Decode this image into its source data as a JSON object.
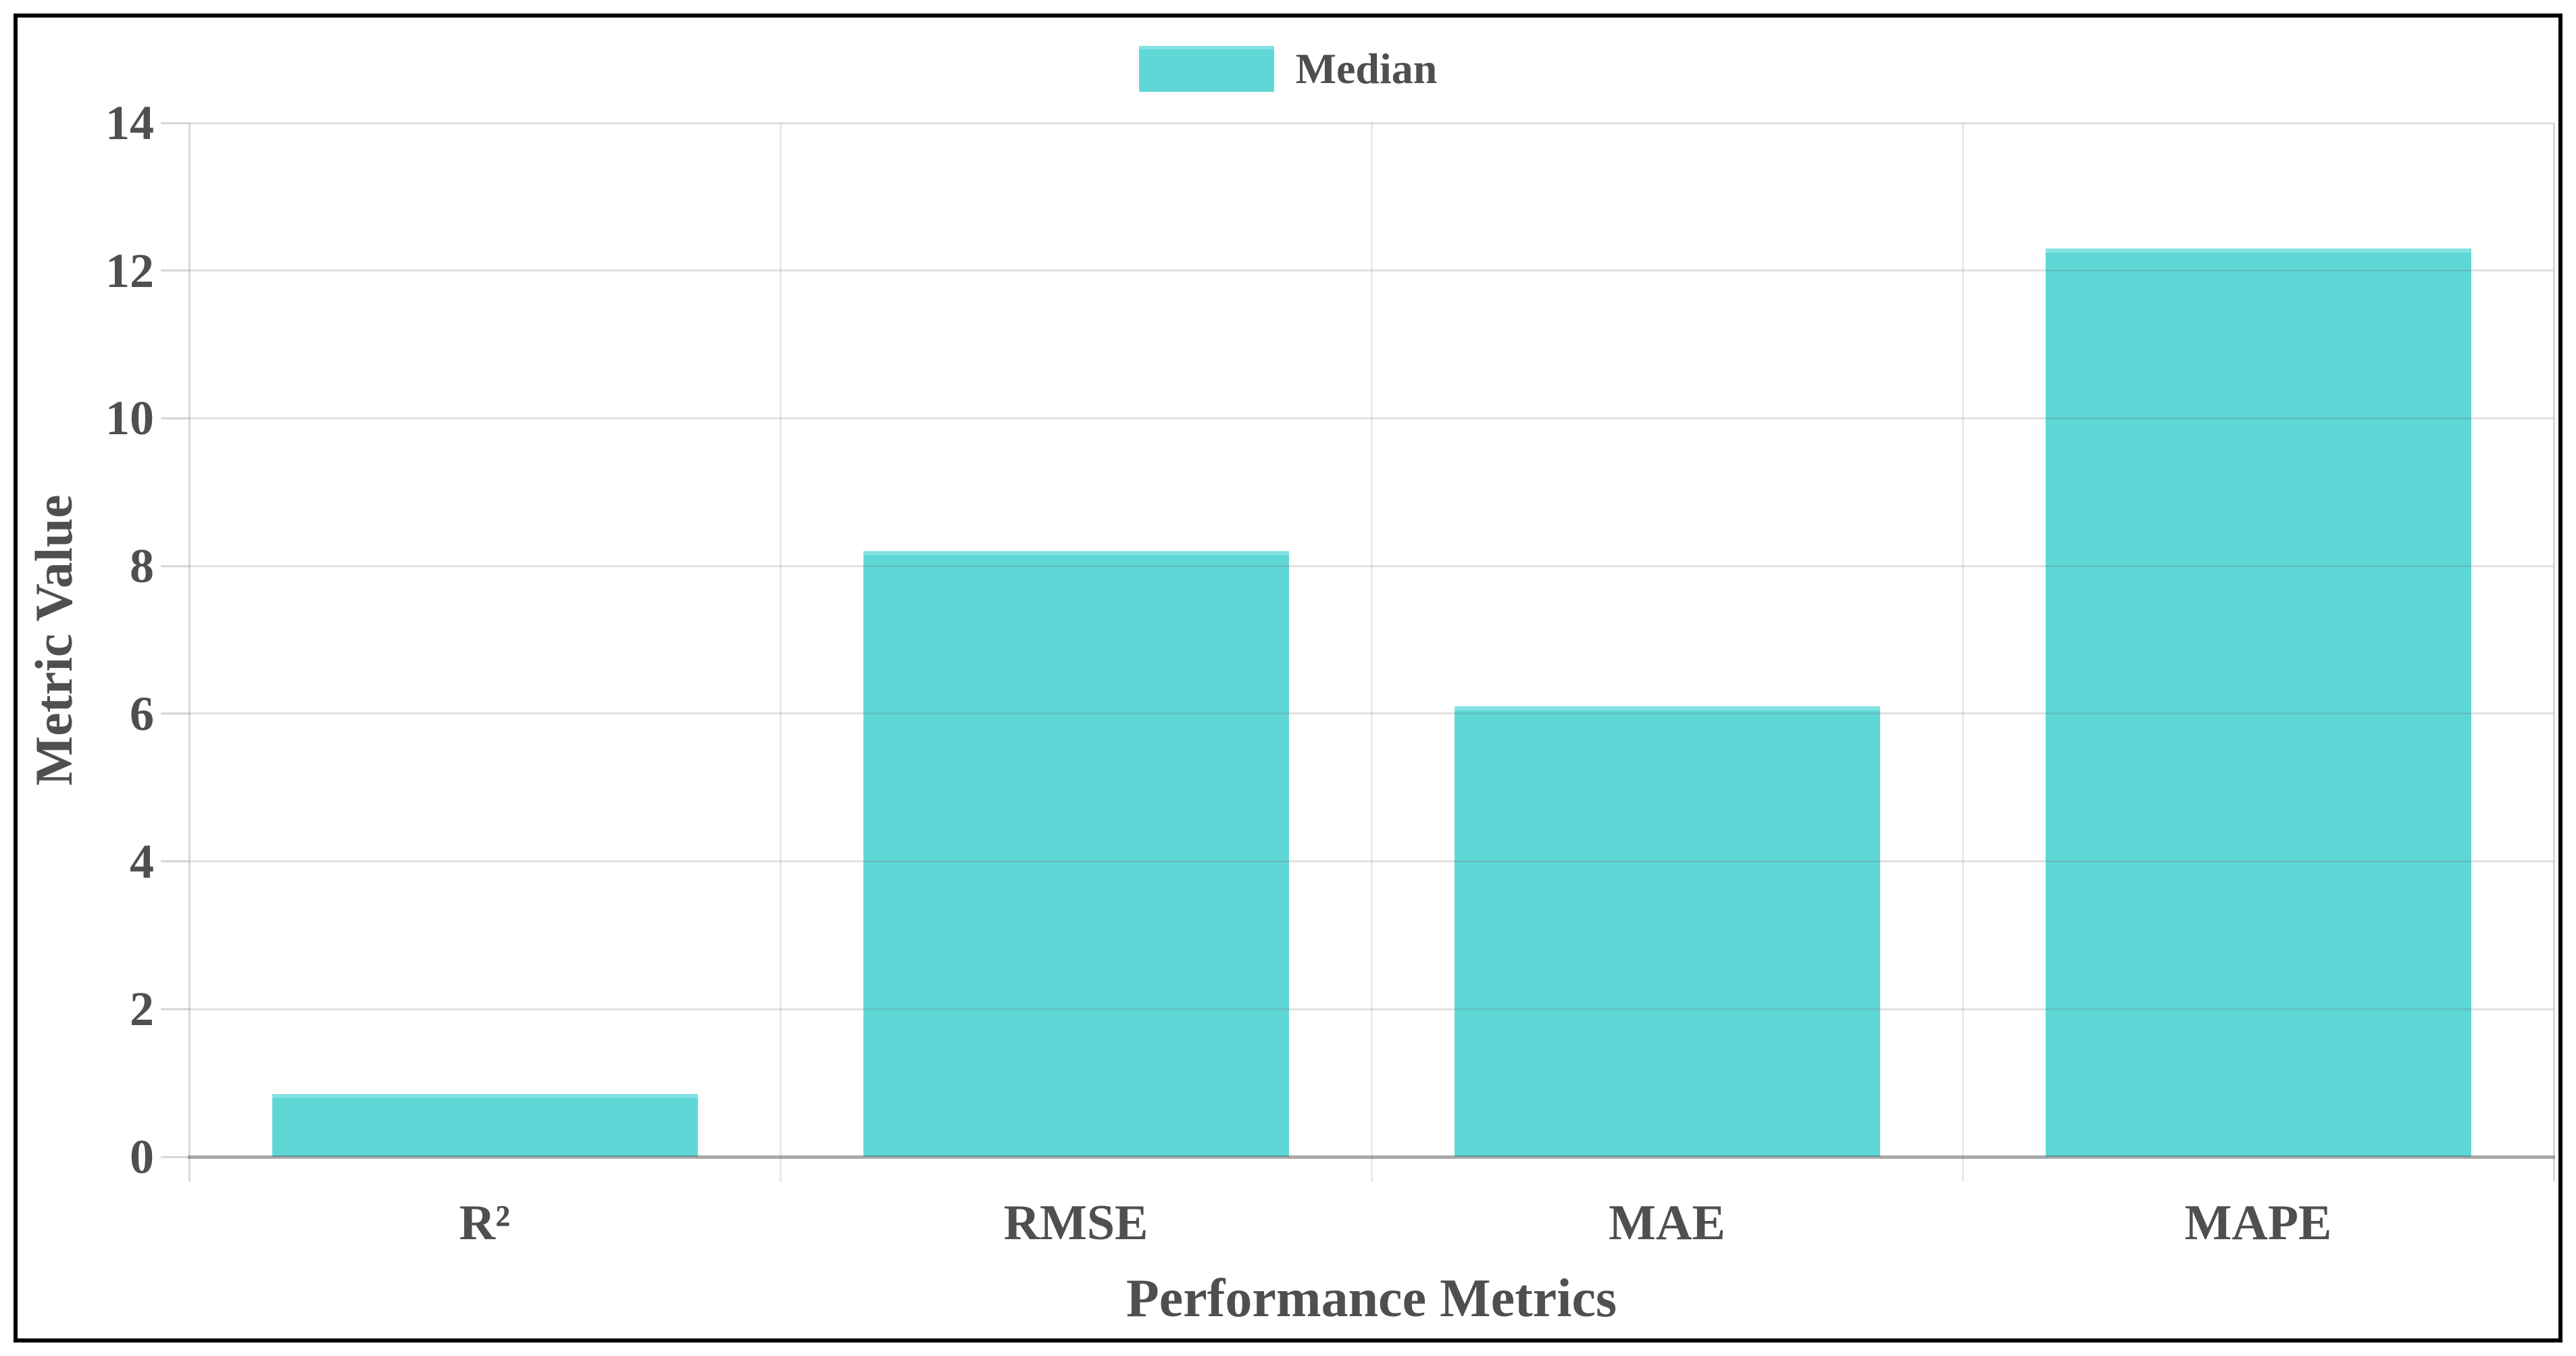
{
  "legend": {
    "label": "Median",
    "position": "top-center"
  },
  "y_axis": {
    "title": "Metric Value"
  },
  "x_axis": {
    "title": "Performance Metrics"
  },
  "colors": {
    "bar_fill": "#5fd7d7",
    "bar_top_highlight": "#85e2e2",
    "text": "#4f4f4f",
    "frame": "#000000",
    "background": "#ffffff"
  },
  "chart_data": {
    "type": "bar",
    "title": "",
    "categories": [
      "R²",
      "RMSE",
      "MAE",
      "MAPE"
    ],
    "series": [
      {
        "name": "Median",
        "values": [
          0.85,
          8.2,
          6.1,
          12.3
        ]
      }
    ],
    "xlabel": "Performance Metrics",
    "ylabel": "Metric Value",
    "ylim": [
      0,
      14
    ],
    "yticks": [
      0,
      2,
      4,
      6,
      8,
      10,
      12,
      14
    ],
    "grid": true,
    "legend_position": "top-center",
    "bar_color": "#5fd7d7"
  }
}
